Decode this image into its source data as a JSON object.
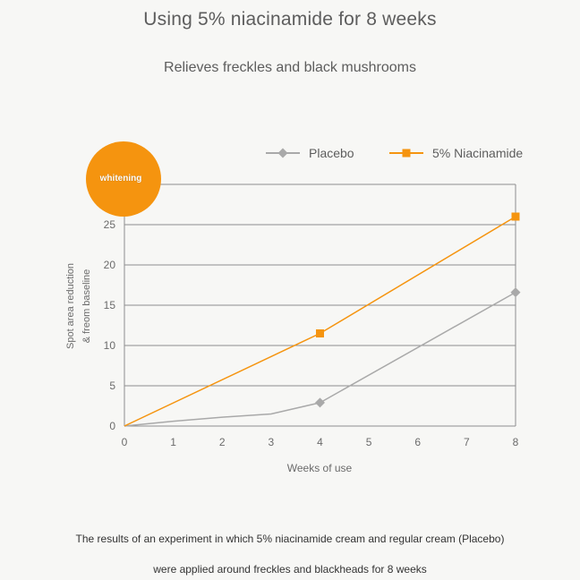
{
  "header": {
    "title": "Using 5% niacinamide for 8 weeks",
    "subtitle": "Relieves freckles and black mushrooms"
  },
  "badge": {
    "label": "whitening",
    "color": "#f5940f"
  },
  "chart_data": {
    "type": "line",
    "xlabel": "Weeks of use",
    "ylabel_lines": [
      "Spot area reduction",
      "& freom baseline"
    ],
    "x_ticks": [
      0,
      1,
      2,
      3,
      4,
      5,
      6,
      7,
      8
    ],
    "y_ticks": [
      0,
      5,
      10,
      15,
      20,
      25
    ],
    "xlim": [
      0,
      8
    ],
    "ylim": [
      0,
      30
    ],
    "grid": "horizontal",
    "legend_position": "top-right",
    "series": [
      {
        "name": "Placebo",
        "color": "#a9a9a9",
        "marker": "diamond",
        "line": [
          [
            0,
            0
          ],
          [
            1,
            0.6
          ],
          [
            2,
            1.1
          ],
          [
            3,
            1.5
          ],
          [
            4,
            2.9
          ],
          [
            8,
            16.6
          ]
        ],
        "markers": [
          [
            4,
            2.9
          ],
          [
            8,
            16.6
          ]
        ]
      },
      {
        "name": "5% Niacinamide",
        "color": "#f5940f",
        "marker": "square",
        "line": [
          [
            0,
            0
          ],
          [
            4,
            11.5
          ],
          [
            8,
            26
          ]
        ],
        "markers": [
          [
            4,
            11.5
          ],
          [
            8,
            26
          ]
        ]
      }
    ]
  },
  "caption": {
    "line1": "The results of an experiment in which 5% niacinamide cream and regular cream (Placebo)",
    "line2": "were applied around freckles and blackheads for 8 weeks"
  }
}
